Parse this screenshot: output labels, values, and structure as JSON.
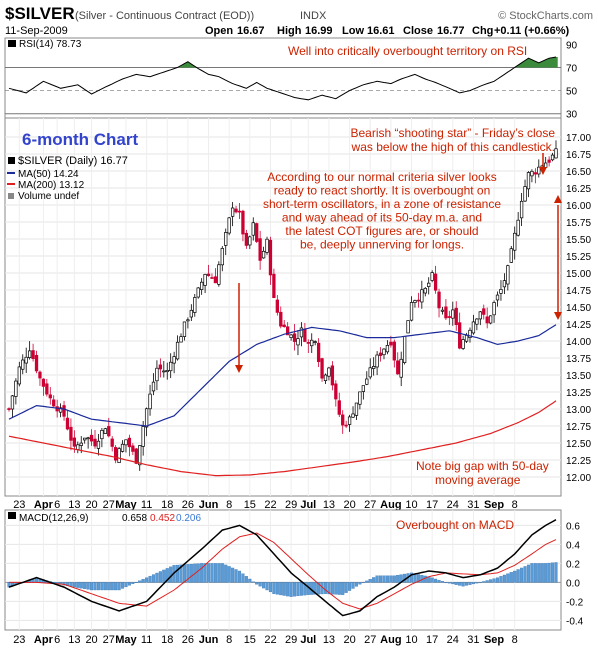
{
  "header": {
    "symbol": "$SILVER",
    "description": "(Silver - Continuous Contract (EOD))",
    "exchange": "INDX",
    "credit": "© StockCharts.com",
    "date": "11-Sep-2009",
    "ohlc": {
      "open_label": "Open",
      "open": "16.67",
      "high_label": "High",
      "high": "16.99",
      "low_label": "Low",
      "low": "16.61",
      "close_label": "Close",
      "close": "16.77",
      "change_label": "Chg",
      "change": "+0.11 (+0.66%)"
    }
  },
  "colors": {
    "up": "#000000",
    "down": "#cc0033",
    "ma50": "#1a2a9a",
    "ma200": "#e02020",
    "macd": "#000000",
    "signal": "#e02020",
    "histogram": "#5b9bd5",
    "rsi_fill": "#3c8a3c",
    "annotation": "#cc2200",
    "title_blue": "#3344cc"
  },
  "chart_data": [
    {
      "panel": "rsi",
      "type": "line",
      "label": "RSI(14) 78.73",
      "ylim": [
        28,
        92
      ],
      "ticks": [
        90,
        70,
        50,
        30
      ],
      "reference_lines": [
        70,
        50,
        30
      ],
      "y_at_day": [
        [
          0,
          52
        ],
        [
          5,
          48
        ],
        [
          10,
          58
        ],
        [
          15,
          52
        ],
        [
          20,
          55
        ],
        [
          24,
          47
        ],
        [
          28,
          53
        ],
        [
          33,
          60
        ],
        [
          37,
          64
        ],
        [
          41,
          62
        ],
        [
          45,
          66
        ],
        [
          49,
          70
        ],
        [
          52,
          75
        ],
        [
          55,
          69
        ],
        [
          58,
          64
        ],
        [
          61,
          62
        ],
        [
          65,
          56
        ],
        [
          69,
          52
        ],
        [
          72,
          57
        ],
        [
          75,
          52
        ],
        [
          79,
          48
        ],
        [
          83,
          44
        ],
        [
          87,
          42
        ],
        [
          91,
          46
        ],
        [
          95,
          43
        ],
        [
          99,
          50
        ],
        [
          103,
          55
        ],
        [
          107,
          58
        ],
        [
          111,
          56
        ],
        [
          114,
          60
        ],
        [
          118,
          64
        ],
        [
          121,
          60
        ],
        [
          124,
          57
        ],
        [
          128,
          52
        ],
        [
          131,
          48
        ],
        [
          134,
          50
        ],
        [
          138,
          55
        ],
        [
          141,
          58
        ],
        [
          145,
          66
        ],
        [
          148,
          72
        ],
        [
          151,
          78
        ],
        [
          154,
          74
        ],
        [
          157,
          78
        ],
        [
          159,
          79
        ]
      ]
    },
    {
      "panel": "price",
      "type": "candlestick",
      "label": "$SILVER (Daily) 16.77",
      "ylim": [
        11.75,
        17.25
      ],
      "ticks": [
        17.0,
        16.75,
        16.5,
        16.25,
        16.0,
        15.75,
        15.5,
        15.25,
        15.0,
        14.75,
        14.5,
        14.25,
        14.0,
        13.75,
        13.5,
        13.25,
        13.0,
        12.75,
        12.5,
        12.25,
        12.0
      ],
      "close_anchors": [
        [
          0,
          13.0
        ],
        [
          3,
          13.6
        ],
        [
          6,
          13.9
        ],
        [
          9,
          13.45
        ],
        [
          12,
          13.15
        ],
        [
          16,
          12.9
        ],
        [
          19,
          12.4
        ],
        [
          22,
          12.6
        ],
        [
          25,
          12.5
        ],
        [
          28,
          12.75
        ],
        [
          31,
          12.3
        ],
        [
          34,
          12.55
        ],
        [
          37,
          12.25
        ],
        [
          40,
          13.0
        ],
        [
          43,
          13.6
        ],
        [
          46,
          13.55
        ],
        [
          50,
          14.1
        ],
        [
          54,
          14.6
        ],
        [
          57,
          15.0
        ],
        [
          60,
          14.9
        ],
        [
          63,
          15.55
        ],
        [
          65,
          16.0
        ],
        [
          67,
          15.85
        ],
        [
          69,
          15.35
        ],
        [
          71,
          15.7
        ],
        [
          73,
          15.2
        ],
        [
          75,
          15.45
        ],
        [
          77,
          14.6
        ],
        [
          79,
          14.25
        ],
        [
          81,
          14.15
        ],
        [
          83,
          14.0
        ],
        [
          85,
          14.15
        ],
        [
          87,
          13.95
        ],
        [
          89,
          14.05
        ],
        [
          91,
          13.45
        ],
        [
          93,
          13.65
        ],
        [
          95,
          13.1
        ],
        [
          97,
          12.75
        ],
        [
          99,
          12.85
        ],
        [
          101,
          13.1
        ],
        [
          103,
          13.35
        ],
        [
          105,
          13.55
        ],
        [
          107,
          13.75
        ],
        [
          109,
          13.9
        ],
        [
          111,
          14.0
        ],
        [
          113,
          13.5
        ],
        [
          115,
          14.05
        ],
        [
          117,
          14.6
        ],
        [
          119,
          14.65
        ],
        [
          121,
          14.75
        ],
        [
          123,
          14.95
        ],
        [
          125,
          14.5
        ],
        [
          127,
          14.3
        ],
        [
          129,
          14.45
        ],
        [
          131,
          13.95
        ],
        [
          133,
          14.1
        ],
        [
          135,
          14.3
        ],
        [
          137,
          14.45
        ],
        [
          139,
          14.25
        ],
        [
          141,
          14.55
        ],
        [
          143,
          14.75
        ],
        [
          145,
          15.05
        ],
        [
          147,
          15.55
        ],
        [
          149,
          16.1
        ],
        [
          151,
          16.45
        ],
        [
          153,
          16.5
        ],
        [
          155,
          16.6
        ],
        [
          157,
          16.66
        ],
        [
          159,
          16.77
        ]
      ],
      "moving_averages": [
        {
          "name": "MA(50) 14.24",
          "y_at_day": [
            [
              0,
              12.85
            ],
            [
              8,
              13.05
            ],
            [
              16,
              13.0
            ],
            [
              24,
              12.85
            ],
            [
              32,
              12.8
            ],
            [
              40,
              12.75
            ],
            [
              48,
              12.9
            ],
            [
              56,
              13.3
            ],
            [
              64,
              13.7
            ],
            [
              72,
              13.95
            ],
            [
              80,
              14.1
            ],
            [
              88,
              14.2
            ],
            [
              96,
              14.15
            ],
            [
              104,
              14.05
            ],
            [
              112,
              14.05
            ],
            [
              120,
              14.1
            ],
            [
              128,
              14.15
            ],
            [
              136,
              14.05
            ],
            [
              142,
              13.95
            ],
            [
              148,
              14.0
            ],
            [
              154,
              14.08
            ],
            [
              159,
              14.24
            ]
          ]
        },
        {
          "name": "MA(200) 13.12",
          "y_at_day": [
            [
              0,
              12.6
            ],
            [
              10,
              12.5
            ],
            [
              20,
              12.4
            ],
            [
              30,
              12.3
            ],
            [
              40,
              12.18
            ],
            [
              50,
              12.08
            ],
            [
              60,
              12.02
            ],
            [
              70,
              12.03
            ],
            [
              80,
              12.08
            ],
            [
              90,
              12.15
            ],
            [
              100,
              12.22
            ],
            [
              110,
              12.3
            ],
            [
              120,
              12.4
            ],
            [
              130,
              12.5
            ],
            [
              140,
              12.64
            ],
            [
              148,
              12.8
            ],
            [
              154,
              12.95
            ],
            [
              159,
              13.12
            ]
          ]
        }
      ],
      "legend": {
        "title": "$SILVER (Daily) 16.77",
        "ma50": "MA(50) 14.24",
        "ma200": "MA(200) 13.12",
        "volume": "Volume undef"
      }
    },
    {
      "panel": "macd",
      "type": "line",
      "label": "MACD(12,26,9)",
      "values_label": [
        "0.658",
        "0.452",
        "0.206"
      ],
      "ylim": [
        -0.48,
        0.72
      ],
      "ticks": [
        0.6,
        0.4,
        0.2,
        0.0,
        -0.2,
        -0.4
      ],
      "macd_at_day": [
        [
          0,
          -0.05
        ],
        [
          8,
          0.05
        ],
        [
          16,
          -0.05
        ],
        [
          24,
          -0.2
        ],
        [
          32,
          -0.3
        ],
        [
          40,
          -0.2
        ],
        [
          48,
          0.1
        ],
        [
          56,
          0.35
        ],
        [
          62,
          0.55
        ],
        [
          67,
          0.6
        ],
        [
          72,
          0.5
        ],
        [
          77,
          0.3
        ],
        [
          82,
          0.1
        ],
        [
          87,
          -0.05
        ],
        [
          92,
          -0.2
        ],
        [
          97,
          -0.35
        ],
        [
          102,
          -0.3
        ],
        [
          107,
          -0.15
        ],
        [
          112,
          -0.05
        ],
        [
          117,
          0.08
        ],
        [
          122,
          0.12
        ],
        [
          127,
          0.1
        ],
        [
          132,
          0.05
        ],
        [
          137,
          0.08
        ],
        [
          142,
          0.15
        ],
        [
          147,
          0.3
        ],
        [
          152,
          0.5
        ],
        [
          156,
          0.6
        ],
        [
          159,
          0.66
        ]
      ],
      "signal_at_day": [
        [
          0,
          0.0
        ],
        [
          8,
          0.0
        ],
        [
          16,
          -0.02
        ],
        [
          24,
          -0.12
        ],
        [
          32,
          -0.22
        ],
        [
          40,
          -0.25
        ],
        [
          48,
          -0.08
        ],
        [
          56,
          0.15
        ],
        [
          62,
          0.35
        ],
        [
          67,
          0.48
        ],
        [
          72,
          0.52
        ],
        [
          77,
          0.42
        ],
        [
          82,
          0.25
        ],
        [
          87,
          0.08
        ],
        [
          92,
          -0.08
        ],
        [
          97,
          -0.22
        ],
        [
          102,
          -0.28
        ],
        [
          107,
          -0.22
        ],
        [
          112,
          -0.12
        ],
        [
          117,
          -0.02
        ],
        [
          122,
          0.06
        ],
        [
          127,
          0.1
        ],
        [
          132,
          0.09
        ],
        [
          137,
          0.08
        ],
        [
          142,
          0.1
        ],
        [
          147,
          0.18
        ],
        [
          152,
          0.3
        ],
        [
          156,
          0.4
        ],
        [
          159,
          0.45
        ]
      ]
    }
  ],
  "annotations": {
    "rsi_note": "Well into critically overbought territory on RSI",
    "six_month": "6-month Chart",
    "shooting_star_1": "Bearish “shooting star” - Friday’s close",
    "shooting_star_2": "was below the high of this candlestick.",
    "main_note": [
      "According to our normal criteria silver looks",
      "ready to react shortly. It is overbought on",
      "short-term oscillators, in a zone of resistance",
      "and way ahead of its 50-day m.a. and",
      "the latest COT figures are, or should",
      "be, deeply unnerving for longs."
    ],
    "gap_note_1": "Note big gap with 50-day",
    "gap_note_2": "moving average",
    "macd_note": "Overbought on MACD"
  },
  "x_axis": {
    "labels": [
      {
        "day": 3,
        "text": "23",
        "bold": false
      },
      {
        "day": 10,
        "text": "Apr",
        "bold": true
      },
      {
        "day": 14,
        "text": "6",
        "bold": false
      },
      {
        "day": 19,
        "text": "13",
        "bold": false
      },
      {
        "day": 24,
        "text": "20",
        "bold": false
      },
      {
        "day": 29,
        "text": "27",
        "bold": false
      },
      {
        "day": 34,
        "text": "May",
        "bold": true
      },
      {
        "day": 40,
        "text": "11",
        "bold": false
      },
      {
        "day": 46,
        "text": "18",
        "bold": false
      },
      {
        "day": 52,
        "text": "26",
        "bold": false
      },
      {
        "day": 58,
        "text": "Jun",
        "bold": true
      },
      {
        "day": 64,
        "text": "8",
        "bold": false
      },
      {
        "day": 70,
        "text": "15",
        "bold": false
      },
      {
        "day": 76,
        "text": "22",
        "bold": false
      },
      {
        "day": 82,
        "text": "29",
        "bold": false
      },
      {
        "day": 87,
        "text": "Jul",
        "bold": true
      },
      {
        "day": 93,
        "text": "13",
        "bold": false
      },
      {
        "day": 99,
        "text": "20",
        "bold": false
      },
      {
        "day": 105,
        "text": "27",
        "bold": false
      },
      {
        "day": 111,
        "text": "Aug",
        "bold": true
      },
      {
        "day": 117,
        "text": "10",
        "bold": false
      },
      {
        "day": 123,
        "text": "17",
        "bold": false
      },
      {
        "day": 129,
        "text": "24",
        "bold": false
      },
      {
        "day": 135,
        "text": "31",
        "bold": false
      },
      {
        "day": 141,
        "text": "Sep",
        "bold": true
      },
      {
        "day": 147,
        "text": "8",
        "bold": false
      }
    ]
  }
}
